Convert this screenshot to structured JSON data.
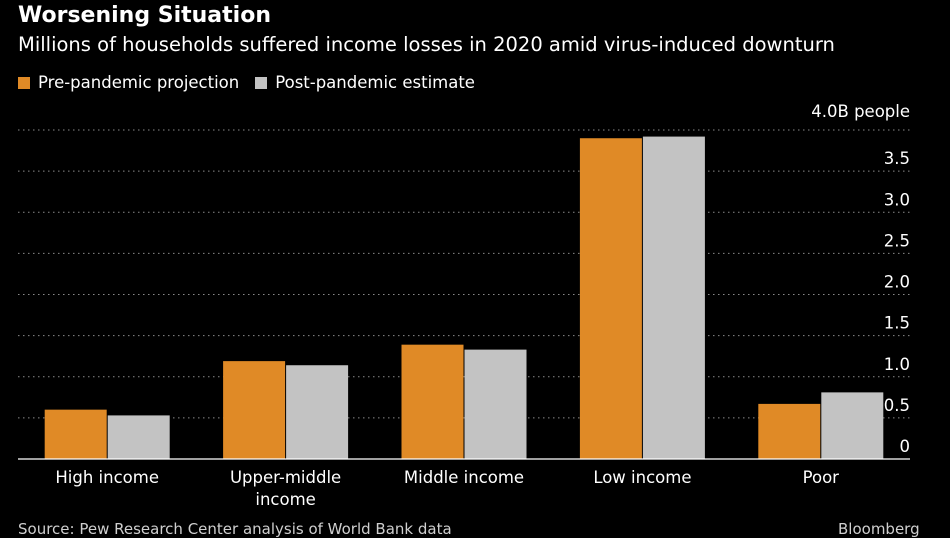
{
  "chart_data": {
    "type": "bar",
    "title": "Worsening Situation",
    "subtitle": "Millions of households suffered income losses in 2020 amid virus-induced downturn",
    "categories": [
      "High income",
      "Upper-middle income",
      "Middle income",
      "Low income",
      "Poor"
    ],
    "category_lines": [
      [
        "High income"
      ],
      [
        "Upper-middle",
        "income"
      ],
      [
        "Middle income"
      ],
      [
        "Low income"
      ],
      [
        "Poor"
      ]
    ],
    "series": [
      {
        "name": "Pre-pandemic projection",
        "color": "#e08a26",
        "values": [
          0.6,
          1.19,
          1.39,
          3.9,
          0.67
        ]
      },
      {
        "name": "Post-pandemic estimate",
        "color": "#c3c3c3",
        "values": [
          0.53,
          1.14,
          1.33,
          3.92,
          0.81
        ]
      }
    ],
    "ylim": [
      0,
      4.0
    ],
    "yticks": [
      {
        "value": 0,
        "label": "0"
      },
      {
        "value": 0.5,
        "label": "0.5"
      },
      {
        "value": 1.0,
        "label": "1.0"
      },
      {
        "value": 1.5,
        "label": "1.5"
      },
      {
        "value": 2.0,
        "label": "2.0"
      },
      {
        "value": 2.5,
        "label": "2.5"
      },
      {
        "value": 3.0,
        "label": "3.0"
      },
      {
        "value": 3.5,
        "label": "3.5"
      },
      {
        "value": 4.0,
        "label": "4.0B people"
      }
    ],
    "xlabel": "",
    "ylabel": "",
    "legend_position": "top-left",
    "grid": true,
    "source": "Source: Pew Research Center analysis of World Bank data",
    "logo_text": "Bloomberg"
  }
}
